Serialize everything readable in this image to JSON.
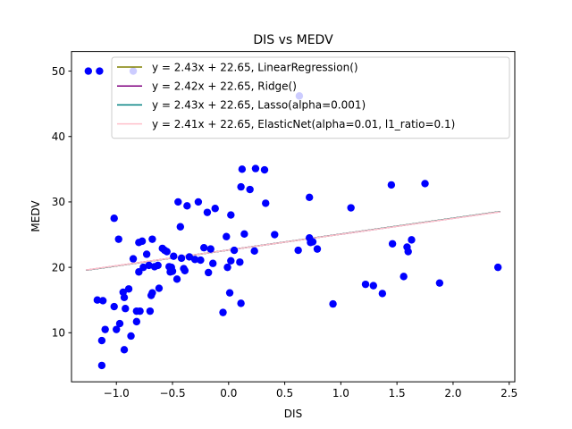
{
  "chart_data": {
    "type": "scatter",
    "title": "DIS vs MEDV",
    "xlabel": "DIS",
    "ylabel": "MEDV",
    "xlim": [
      -1.4,
      2.55
    ],
    "ylim": [
      2.5,
      53
    ],
    "xticks": [
      -1.0,
      -0.5,
      0.0,
      0.5,
      1.0,
      1.5,
      2.0,
      2.5
    ],
    "xtick_labels": [
      "−1.0",
      "−0.5",
      "0.0",
      "0.5",
      "1.0",
      "1.5",
      "2.0",
      "2.5"
    ],
    "yticks": [
      10,
      20,
      30,
      40,
      50
    ],
    "ytick_labels": [
      "10",
      "20",
      "30",
      "40",
      "50"
    ],
    "grid": false,
    "legend_position": "top-right",
    "points_color": "#0000ff",
    "points": [
      [
        -1.25,
        50.0
      ],
      [
        -1.15,
        50.0
      ],
      [
        -0.85,
        50.0
      ],
      [
        0.63,
        46.2
      ],
      [
        -1.17,
        15.0
      ],
      [
        -1.12,
        14.9
      ],
      [
        -1.02,
        14.0
      ],
      [
        -1.1,
        10.5
      ],
      [
        -1.13,
        8.8
      ],
      [
        -1.13,
        5.0
      ],
      [
        -1.02,
        27.5
      ],
      [
        -0.98,
        24.3
      ],
      [
        -1.0,
        10.5
      ],
      [
        -0.97,
        11.4
      ],
      [
        -0.94,
        16.2
      ],
      [
        -0.92,
        13.7
      ],
      [
        -0.93,
        15.4
      ],
      [
        -0.93,
        7.4
      ],
      [
        -0.89,
        16.7
      ],
      [
        -0.87,
        9.5
      ],
      [
        -0.85,
        21.3
      ],
      [
        -0.82,
        11.7
      ],
      [
        -0.82,
        13.3
      ],
      [
        -0.79,
        13.3
      ],
      [
        -0.8,
        19.3
      ],
      [
        -0.8,
        23.8
      ],
      [
        -0.77,
        24.0
      ],
      [
        -0.76,
        20.0
      ],
      [
        -0.73,
        22.0
      ],
      [
        -0.71,
        20.3
      ],
      [
        -0.7,
        13.3
      ],
      [
        -0.69,
        15.7
      ],
      [
        -0.68,
        16.1
      ],
      [
        -0.68,
        24.3
      ],
      [
        -0.66,
        20.1
      ],
      [
        -0.63,
        20.3
      ],
      [
        -0.62,
        16.8
      ],
      [
        -0.59,
        22.9
      ],
      [
        -0.57,
        22.6
      ],
      [
        -0.55,
        22.4
      ],
      [
        -0.53,
        20.1
      ],
      [
        -0.52,
        19.3
      ],
      [
        -0.51,
        20.0
      ],
      [
        -0.5,
        19.4
      ],
      [
        -0.49,
        21.7
      ],
      [
        -0.46,
        18.2
      ],
      [
        -0.45,
        30.0
      ],
      [
        -0.43,
        26.2
      ],
      [
        -0.42,
        21.4
      ],
      [
        -0.4,
        19.8
      ],
      [
        -0.39,
        19.5
      ],
      [
        -0.37,
        29.4
      ],
      [
        -0.35,
        21.6
      ],
      [
        -0.3,
        21.2
      ],
      [
        -0.27,
        30.0
      ],
      [
        -0.25,
        21.1
      ],
      [
        -0.22,
        23.0
      ],
      [
        -0.19,
        28.4
      ],
      [
        -0.18,
        19.2
      ],
      [
        -0.16,
        22.8
      ],
      [
        -0.14,
        20.6
      ],
      [
        -0.12,
        29.0
      ],
      [
        -0.05,
        13.1
      ],
      [
        -0.02,
        24.7
      ],
      [
        -0.01,
        20.0
      ],
      [
        0.02,
        28.0
      ],
      [
        0.01,
        16.1
      ],
      [
        0.02,
        21.0
      ],
      [
        0.05,
        22.6
      ],
      [
        0.1,
        20.8
      ],
      [
        0.11,
        14.5
      ],
      [
        0.11,
        32.3
      ],
      [
        0.12,
        35.0
      ],
      [
        0.14,
        25.1
      ],
      [
        0.19,
        31.9
      ],
      [
        0.24,
        35.1
      ],
      [
        0.23,
        22.5
      ],
      [
        0.32,
        34.9
      ],
      [
        0.33,
        29.8
      ],
      [
        0.41,
        25.0
      ],
      [
        0.62,
        22.6
      ],
      [
        0.72,
        30.7
      ],
      [
        0.72,
        24.5
      ],
      [
        0.75,
        23.9
      ],
      [
        0.73,
        23.8
      ],
      [
        0.79,
        22.8
      ],
      [
        0.93,
        14.4
      ],
      [
        1.09,
        29.1
      ],
      [
        1.22,
        17.4
      ],
      [
        1.29,
        17.2
      ],
      [
        1.37,
        16.0
      ],
      [
        1.45,
        32.6
      ],
      [
        1.46,
        23.6
      ],
      [
        1.56,
        18.6
      ],
      [
        1.59,
        23.1
      ],
      [
        1.6,
        22.4
      ],
      [
        1.63,
        24.2
      ],
      [
        1.75,
        32.8
      ],
      [
        1.88,
        17.6
      ],
      [
        2.4,
        20.0
      ]
    ],
    "series": [
      {
        "name": "y = 2.43x + 22.65, LinearRegression()",
        "slope": 2.43,
        "intercept": 22.65,
        "color": "#808000",
        "x_range": [
          -1.27,
          2.42
        ]
      },
      {
        "name": "y = 2.42x + 22.65, Ridge()",
        "slope": 2.42,
        "intercept": 22.65,
        "color": "#800080",
        "x_range": [
          -1.27,
          2.42
        ]
      },
      {
        "name": "y = 2.43x + 22.65, Lasso(alpha=0.001)",
        "slope": 2.43,
        "intercept": 22.65,
        "color": "#008080",
        "x_range": [
          -1.27,
          2.42
        ]
      },
      {
        "name": "y = 2.41x + 22.65, ElasticNet(alpha=0.01, l1_ratio=0.1)",
        "slope": 2.41,
        "intercept": 22.65,
        "color": "#ffc0cb",
        "x_range": [
          -1.27,
          2.42
        ]
      }
    ]
  }
}
